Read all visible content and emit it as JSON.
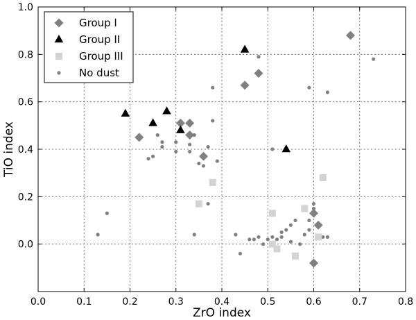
{
  "chart_data": {
    "type": "scatter",
    "xlabel": "ZrO index",
    "ylabel": "TiO index",
    "xlim": [
      0.0,
      0.8
    ],
    "ylim": [
      -0.2,
      1.0
    ],
    "x_ticks": [
      "0.0",
      "0.1",
      "0.2",
      "0.3",
      "0.4",
      "0.5",
      "0.6",
      "0.7",
      "0.8"
    ],
    "y_ticks": [
      "0.0",
      "0.2",
      "0.4",
      "0.6",
      "0.8",
      "1.0"
    ],
    "grid": true,
    "legend_position": "top-left",
    "series": [
      {
        "name": "Group I",
        "marker": "diamond",
        "color": "#808080",
        "points": [
          [
            0.22,
            0.45
          ],
          [
            0.31,
            0.51
          ],
          [
            0.33,
            0.51
          ],
          [
            0.33,
            0.46
          ],
          [
            0.36,
            0.37
          ],
          [
            0.45,
            0.67
          ],
          [
            0.48,
            0.72
          ],
          [
            0.68,
            0.88
          ],
          [
            0.6,
            0.13
          ],
          [
            0.61,
            0.08
          ],
          [
            0.6,
            -0.08
          ]
        ]
      },
      {
        "name": "Group II",
        "marker": "triangle",
        "color": "#000000",
        "points": [
          [
            0.19,
            0.55
          ],
          [
            0.25,
            0.51
          ],
          [
            0.28,
            0.56
          ],
          [
            0.31,
            0.48
          ],
          [
            0.45,
            0.82
          ],
          [
            0.54,
            0.4
          ]
        ]
      },
      {
        "name": "Group III",
        "marker": "square",
        "color": "#d3d3d3",
        "points": [
          [
            0.35,
            0.17
          ],
          [
            0.38,
            0.26
          ],
          [
            0.51,
            0.13
          ],
          [
            0.51,
            0.0
          ],
          [
            0.52,
            -0.02
          ],
          [
            0.56,
            -0.05
          ],
          [
            0.58,
            0.15
          ],
          [
            0.61,
            0.03
          ],
          [
            0.62,
            0.28
          ]
        ]
      },
      {
        "name": "No dust",
        "marker": "dot",
        "color": "#808080",
        "points": [
          [
            0.13,
            0.04
          ],
          [
            0.15,
            0.13
          ],
          [
            0.24,
            0.36
          ],
          [
            0.25,
            0.37
          ],
          [
            0.26,
            0.46
          ],
          [
            0.27,
            0.43
          ],
          [
            0.27,
            0.41
          ],
          [
            0.3,
            0.43
          ],
          [
            0.3,
            0.39
          ],
          [
            0.33,
            0.42
          ],
          [
            0.33,
            0.39
          ],
          [
            0.34,
            0.46
          ],
          [
            0.35,
            0.34
          ],
          [
            0.36,
            0.33
          ],
          [
            0.37,
            0.41
          ],
          [
            0.38,
            0.52
          ],
          [
            0.39,
            0.35
          ],
          [
            0.38,
            0.66
          ],
          [
            0.37,
            0.17
          ],
          [
            0.34,
            0.04
          ],
          [
            0.43,
            0.04
          ],
          [
            0.44,
            -0.04
          ],
          [
            0.46,
            0.02
          ],
          [
            0.47,
            0.02
          ],
          [
            0.48,
            0.03
          ],
          [
            0.49,
            0.0
          ],
          [
            0.5,
            0.02
          ],
          [
            0.51,
            0.03
          ],
          [
            0.52,
            0.02
          ],
          [
            0.53,
            0.03
          ],
          [
            0.53,
            0.05
          ],
          [
            0.54,
            0.06
          ],
          [
            0.55,
            0.01
          ],
          [
            0.55,
            0.08
          ],
          [
            0.56,
            0.1
          ],
          [
            0.57,
            0.0
          ],
          [
            0.58,
            0.04
          ],
          [
            0.59,
            0.1
          ],
          [
            0.59,
            0.06
          ],
          [
            0.6,
            0.15
          ],
          [
            0.6,
            0.17
          ],
          [
            0.62,
            0.03
          ],
          [
            0.63,
            0.03
          ],
          [
            0.51,
            0.4
          ],
          [
            0.48,
            0.79
          ],
          [
            0.59,
            0.66
          ],
          [
            0.63,
            0.64
          ],
          [
            0.73,
            0.78
          ]
        ]
      }
    ]
  }
}
